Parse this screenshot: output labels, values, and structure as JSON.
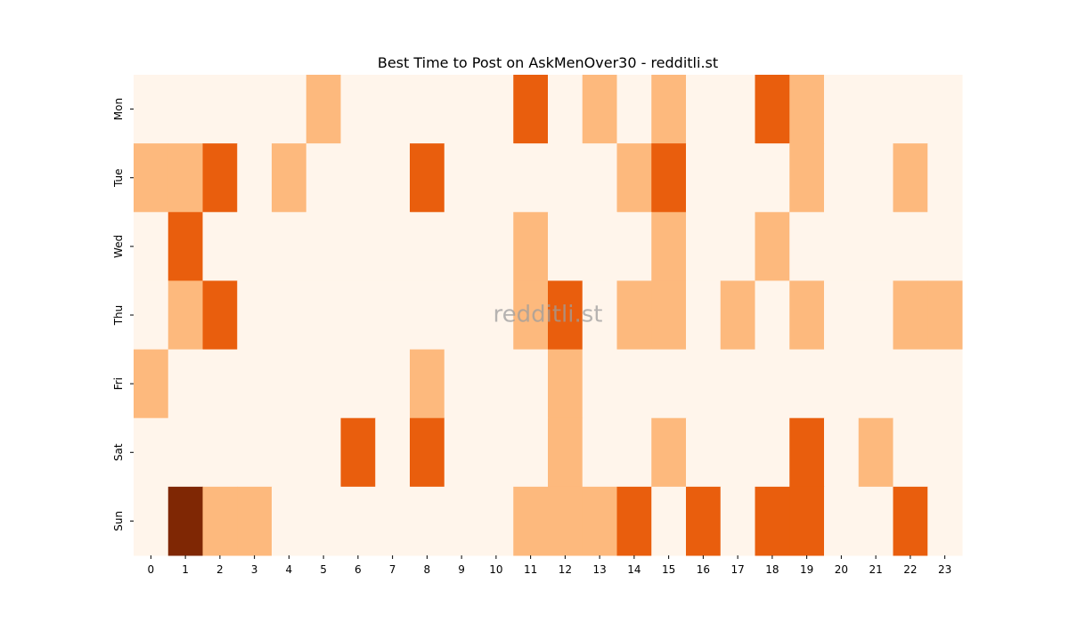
{
  "chart_data": {
    "type": "heatmap",
    "title": "Best Time to Post on AskMenOver30 - redditli.st",
    "watermark": "redditli.st",
    "xlabel": "",
    "ylabel": "",
    "x": [
      "0",
      "1",
      "2",
      "3",
      "4",
      "5",
      "6",
      "7",
      "8",
      "9",
      "10",
      "11",
      "12",
      "13",
      "14",
      "15",
      "16",
      "17",
      "18",
      "19",
      "20",
      "21",
      "22",
      "23"
    ],
    "y": [
      "Mon",
      "Tue",
      "Wed",
      "Thu",
      "Fri",
      "Sat",
      "Sun"
    ],
    "values": [
      [
        0,
        0,
        0,
        0,
        0,
        1,
        0,
        0,
        0,
        0,
        0,
        2,
        0,
        1,
        0,
        1,
        0,
        0,
        2,
        1,
        0,
        0,
        0,
        0
      ],
      [
        1,
        1,
        2,
        0,
        1,
        0,
        0,
        0,
        2,
        0,
        0,
        0,
        0,
        0,
        1,
        2,
        0,
        0,
        0,
        1,
        0,
        0,
        1,
        0
      ],
      [
        0,
        2,
        0,
        0,
        0,
        0,
        0,
        0,
        0,
        0,
        0,
        1,
        0,
        0,
        0,
        1,
        0,
        0,
        1,
        0,
        0,
        0,
        0,
        0
      ],
      [
        0,
        1,
        2,
        0,
        0,
        0,
        0,
        0,
        0,
        0,
        0,
        1,
        2,
        0,
        1,
        1,
        0,
        1,
        0,
        1,
        0,
        0,
        1,
        1
      ],
      [
        1,
        0,
        0,
        0,
        0,
        0,
        0,
        0,
        1,
        0,
        0,
        0,
        1,
        0,
        0,
        0,
        0,
        0,
        0,
        0,
        0,
        0,
        0,
        0
      ],
      [
        0,
        0,
        0,
        0,
        0,
        0,
        2,
        0,
        2,
        0,
        0,
        0,
        1,
        0,
        0,
        1,
        0,
        0,
        0,
        2,
        0,
        1,
        0,
        0
      ],
      [
        0,
        3,
        1,
        1,
        0,
        0,
        0,
        0,
        0,
        0,
        0,
        1,
        1,
        1,
        2,
        0,
        2,
        0,
        2,
        2,
        0,
        0,
        2,
        0
      ]
    ],
    "colors": [
      "#fff5eb",
      "#fdb97d",
      "#e95e0d",
      "#7f2704"
    ],
    "grid": false,
    "legend": "none"
  }
}
